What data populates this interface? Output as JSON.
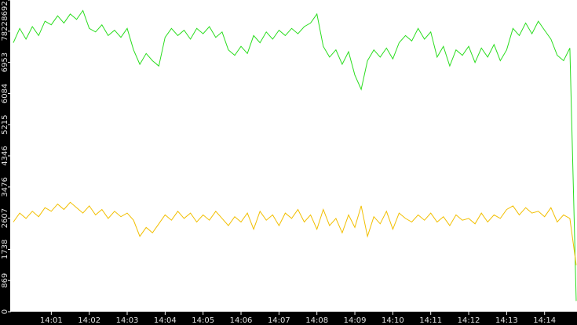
{
  "chart_data": {
    "type": "line",
    "categories": [
      null,
      null,
      null,
      null,
      null,
      null,
      "14:01",
      null,
      null,
      null,
      null,
      null,
      "14:02",
      null,
      null,
      null,
      null,
      null,
      "14:03",
      null,
      null,
      null,
      null,
      null,
      "14:04",
      null,
      null,
      null,
      null,
      null,
      "14:05",
      null,
      null,
      null,
      null,
      null,
      "14:06",
      null,
      null,
      null,
      null,
      null,
      "14:07",
      null,
      null,
      null,
      null,
      null,
      "14:08",
      null,
      null,
      null,
      null,
      null,
      "14:09",
      null,
      null,
      null,
      null,
      null,
      "14:10",
      null,
      null,
      null,
      null,
      null,
      "14:11",
      null,
      null,
      null,
      null,
      null,
      "14:12",
      null,
      null,
      null,
      null,
      null,
      "14:13",
      null,
      null,
      null,
      null,
      null,
      "14:14",
      null,
      null,
      null,
      null,
      null
    ],
    "series": [
      {
        "color": "#2add1e",
        "values": [
          7500,
          7900,
          7600,
          7950,
          7700,
          8100,
          8000,
          8250,
          8050,
          8300,
          8150,
          8400,
          7900,
          7800,
          8000,
          7700,
          7850,
          7650,
          7900,
          7300,
          6900,
          7200,
          7000,
          6850,
          7650,
          7900,
          7700,
          7850,
          7600,
          7900,
          7750,
          7950,
          7650,
          7800,
          7300,
          7150,
          7400,
          7200,
          7700,
          7500,
          7800,
          7600,
          7850,
          7700,
          7900,
          7750,
          7950,
          8050,
          8300,
          7400,
          7100,
          7300,
          6900,
          7250,
          6600,
          6200,
          7000,
          7300,
          7100,
          7350,
          7050,
          7500,
          7700,
          7550,
          7900,
          7600,
          7800,
          7100,
          7400,
          6850,
          7300,
          7150,
          7400,
          6950,
          7350,
          7100,
          7450,
          7000,
          7300,
          7900,
          7700,
          8050,
          7750,
          8100,
          7850,
          7600,
          7150,
          7000,
          7350,
          300
        ]
      },
      {
        "color": "#f2bf00",
        "values": [
          2500,
          2750,
          2600,
          2800,
          2650,
          2900,
          2800,
          3000,
          2850,
          3050,
          2900,
          2750,
          2950,
          2700,
          2850,
          2600,
          2800,
          2650,
          2750,
          2550,
          2100,
          2350,
          2200,
          2450,
          2700,
          2550,
          2800,
          2600,
          2750,
          2500,
          2700,
          2550,
          2800,
          2600,
          2400,
          2650,
          2500,
          2750,
          2300,
          2800,
          2550,
          2700,
          2400,
          2750,
          2600,
          2850,
          2500,
          2700,
          2300,
          2850,
          2400,
          2600,
          2200,
          2700,
          2350,
          2950,
          2100,
          2650,
          2450,
          2800,
          2300,
          2750,
          2600,
          2500,
          2700,
          2550,
          2750,
          2500,
          2650,
          2400,
          2700,
          2550,
          2600,
          2450,
          2750,
          2500,
          2700,
          2600,
          2850,
          2950,
          2700,
          2900,
          2750,
          2800,
          2650,
          2900,
          2500,
          2700,
          2600,
          1300
        ]
      }
    ],
    "ylim": [
      0,
      8692
    ],
    "yticks": [
      0,
      869,
      1738,
      2607,
      3476,
      4346,
      5215,
      6084,
      6953,
      7822,
      8692
    ]
  }
}
